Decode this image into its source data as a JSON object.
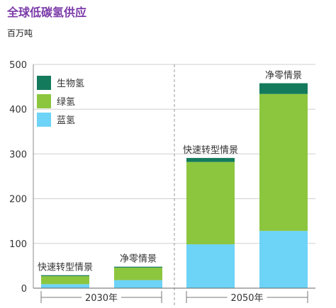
{
  "chart_data": {
    "type": "bar",
    "stacked": true,
    "title": "全球低碳氢供应",
    "ylabel": "百万吨",
    "ylim": [
      0,
      500
    ],
    "yticks": [
      0,
      100,
      200,
      300,
      400,
      500
    ],
    "groups": [
      "2030年",
      "2050年"
    ],
    "categories": [
      "快速转型情景",
      "净零情景",
      "快速转型情景",
      "净零情景"
    ],
    "bar_group": [
      "2030年",
      "2030年",
      "2050年",
      "2050年"
    ],
    "series": [
      {
        "name": "蓝氢",
        "color": "#6dd3f7",
        "values": [
          9,
          18,
          98,
          128
        ]
      },
      {
        "name": "绿氢",
        "color": "#8cc63f",
        "values": [
          18,
          28,
          184,
          306
        ]
      },
      {
        "name": "生物氢",
        "color": "#147a5c",
        "values": [
          2,
          2,
          9,
          24
        ]
      }
    ],
    "legend_order": [
      "生物氢",
      "绿氢",
      "蓝氢"
    ],
    "legend_position": "top-left",
    "grid": true
  }
}
